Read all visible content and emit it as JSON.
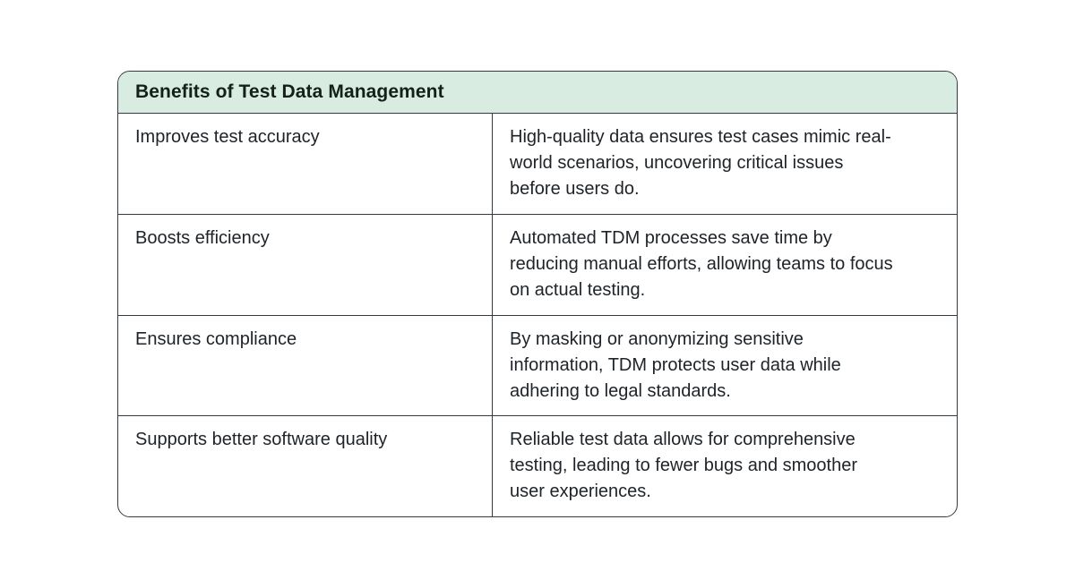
{
  "table": {
    "title": "Benefits of Test Data Management",
    "header_bg": "#d9ece2",
    "border_color": "#333a40",
    "columns": [
      "benefit",
      "description"
    ],
    "rows": [
      {
        "benefit": "Improves test accuracy",
        "description": "High-quality data ensures test cases mimic real-world scenarios, uncovering critical issues before users do."
      },
      {
        "benefit": "Boosts efficiency",
        "description": "Automated TDM processes save time by reducing manual efforts, allowing teams to focus on actual testing."
      },
      {
        "benefit": "Ensures compliance",
        "description": "By masking or anonymizing sensitive information, TDM protects user data while adhering to legal standards."
      },
      {
        "benefit": "Supports better software quality",
        "description": "Reliable test data allows for comprehensive testing, leading to fewer bugs and smoother user experiences."
      }
    ]
  }
}
